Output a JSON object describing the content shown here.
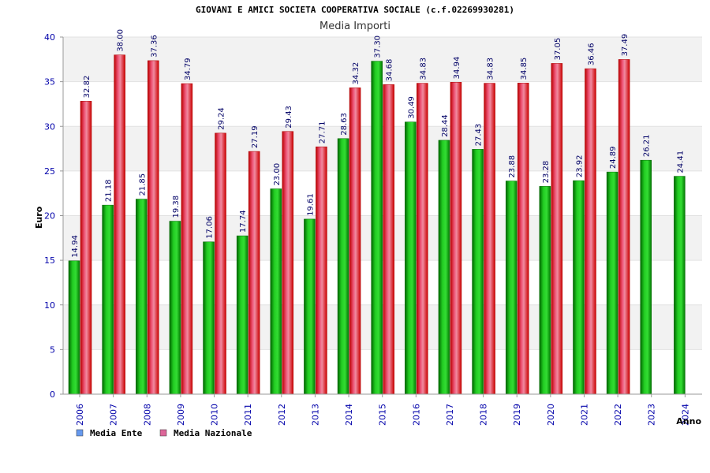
{
  "chart_data": {
    "type": "bar",
    "title": "GIOVANI E AMICI SOCIETA COOPERATIVA SOCIALE (c.f.02269930281)",
    "subtitle": "Media Importi",
    "xlabel": "Anno",
    "ylabel": "Euro",
    "ylim": [
      0,
      40
    ],
    "yticks": [
      0,
      5,
      10,
      15,
      20,
      25,
      30,
      35,
      40
    ],
    "grid": true,
    "legend_position": "bottom-left",
    "categories": [
      "2006",
      "2007",
      "2008",
      "2009",
      "2010",
      "2011",
      "2012",
      "2013",
      "2014",
      "2015",
      "2016",
      "2017",
      "2018",
      "2019",
      "2020",
      "2021",
      "2022",
      "2023",
      "2024"
    ],
    "series": [
      {
        "name": "Media Ente",
        "color": "#00aa00",
        "legend_color": "#6699ee",
        "values": [
          14.94,
          21.18,
          21.85,
          19.38,
          17.06,
          17.74,
          23.0,
          19.61,
          28.63,
          37.3,
          30.49,
          28.44,
          27.43,
          23.88,
          23.28,
          23.92,
          24.89,
          26.21,
          24.41
        ],
        "labels": [
          "14.94",
          "21.18",
          "21.85",
          "19.38",
          "17.06",
          "17.74",
          "23.00",
          "19.61",
          "28.63",
          "37.30",
          "30.49",
          "28.44",
          "27.43",
          "23.88",
          "23.28",
          "23.92",
          "24.89",
          "26.21",
          "24.41"
        ]
      },
      {
        "name": "Media Nazionale",
        "color": "#dd0000",
        "legend_color": "#dd6699",
        "values": [
          32.82,
          38.0,
          37.36,
          34.79,
          29.24,
          27.19,
          29.43,
          27.71,
          34.32,
          34.68,
          34.83,
          34.94,
          34.83,
          34.85,
          37.05,
          36.46,
          37.49,
          null,
          null
        ],
        "labels": [
          "32.82",
          "38.00",
          "37.36",
          "34.79",
          "29.24",
          "27.19",
          "29.43",
          "27.71",
          "34.32",
          "34.68",
          "34.83",
          "34.94",
          "34.83",
          "34.85",
          "37.05",
          "36.46",
          "37.49",
          "",
          ""
        ]
      }
    ]
  }
}
